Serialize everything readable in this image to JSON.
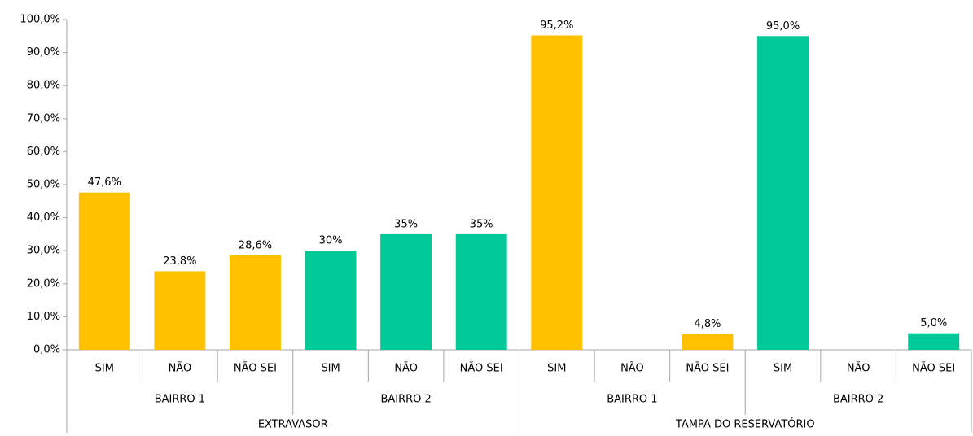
{
  "chart_data": {
    "type": "bar",
    "categories": [
      "SIM",
      "NÃO",
      "NÃO SEI",
      "SIM",
      "NÃO",
      "NÃO SEI",
      "SIM",
      "NÃO",
      "NÃO SEI",
      "SIM",
      "NÃO",
      "NÃO SEI"
    ],
    "values": [
      47.6,
      23.8,
      28.6,
      30,
      35,
      35,
      95.2,
      null,
      4.8,
      95.0,
      null,
      5.0
    ],
    "value_labels": [
      "47,6%",
      "23,8%",
      "28,6%",
      "30%",
      "35%",
      "35%",
      "95,2%",
      null,
      "4,8%",
      "95,0%",
      null,
      "5,0%"
    ],
    "category_levels": [
      [
        "BAIRRO 1",
        "BAIRRO 2",
        "BAIRRO 1",
        "BAIRRO 2"
      ],
      [
        "EXTRAVASOR",
        "TAMPA DO RESERVATÓRIO"
      ]
    ],
    "group_colors": [
      "#FFC000",
      "#00C896",
      "#FFC000",
      "#00C896"
    ],
    "ylim": [
      0,
      100
    ],
    "yticks": [
      {
        "value": 0,
        "label": "0,0%"
      },
      {
        "value": 10,
        "label": "10,0%"
      },
      {
        "value": 20,
        "label": "20,0%"
      },
      {
        "value": 30,
        "label": "30,0%"
      },
      {
        "value": 40,
        "label": "40,0%"
      },
      {
        "value": 50,
        "label": "50,0%"
      },
      {
        "value": 60,
        "label": "60,0%"
      },
      {
        "value": 70,
        "label": "70,0%"
      },
      {
        "value": 80,
        "label": "80,0%"
      },
      {
        "value": 90,
        "label": "90,0%"
      },
      {
        "value": 100,
        "label": "100,0%"
      }
    ],
    "grid": false
  }
}
